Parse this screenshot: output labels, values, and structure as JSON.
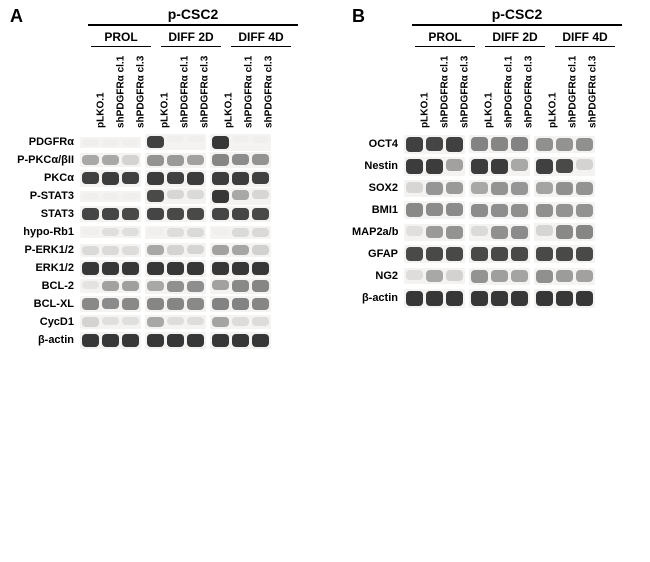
{
  "figure": {
    "background_color": "#ffffff",
    "band_color_dark": "#2c2c2c",
    "band_color_med": "#6a6a6a",
    "band_color_light": "#b4b4b4",
    "band_color_faint": "#dedede",
    "lane_bg": "#f4f3f1",
    "panelA": {
      "letter": "A",
      "cell_line": "p-CSC2",
      "conditions": [
        "PROL",
        "DIFF 2D",
        "DIFF 4D"
      ],
      "lanes": [
        "pLKO.1",
        "shPDGFRα cl.1",
        "shPDGFRα cl.3"
      ],
      "protein_label_width": 70,
      "lane_width": 20,
      "band_height": 12,
      "row_gap": 16,
      "proteins": [
        {
          "name": "PDGFRα",
          "bands": [
            0.2,
            0.08,
            0.1,
            0.9,
            0.05,
            0.05,
            0.95,
            0.06,
            0.08
          ]
        },
        {
          "name": "P-PKCα/βII",
          "bands": [
            0.55,
            0.55,
            0.5,
            0.7,
            0.65,
            0.6,
            0.8,
            0.75,
            0.7
          ]
        },
        {
          "name": "PKCα",
          "bands": [
            0.9,
            0.92,
            0.9,
            0.92,
            0.9,
            0.92,
            0.92,
            0.92,
            0.9
          ]
        },
        {
          "name": "P-STAT3",
          "bands": [
            0.15,
            0.12,
            0.12,
            0.85,
            0.45,
            0.4,
            0.95,
            0.55,
            0.45
          ]
        },
        {
          "name": "STAT3",
          "bands": [
            0.88,
            0.88,
            0.86,
            0.88,
            0.86,
            0.86,
            0.88,
            0.88,
            0.86
          ]
        },
        {
          "name": "hypo-Rb1",
          "bands": [
            0.1,
            0.3,
            0.32,
            0.12,
            0.35,
            0.4,
            0.14,
            0.4,
            0.42
          ]
        },
        {
          "name": "P-ERK1/2",
          "bands": [
            0.4,
            0.38,
            0.36,
            0.55,
            0.5,
            0.48,
            0.6,
            0.56,
            0.54
          ]
        },
        {
          "name": "ERK1/2",
          "bands": [
            0.95,
            0.95,
            0.95,
            0.95,
            0.95,
            0.95,
            0.95,
            0.95,
            0.95
          ]
        },
        {
          "name": "BCL-2",
          "bands": [
            0.25,
            0.6,
            0.62,
            0.55,
            0.72,
            0.74,
            0.6,
            0.78,
            0.8
          ]
        },
        {
          "name": "BCL-XL",
          "bands": [
            0.78,
            0.76,
            0.78,
            0.8,
            0.8,
            0.78,
            0.82,
            0.82,
            0.8
          ]
        },
        {
          "name": "CycD1",
          "bands": [
            0.5,
            0.3,
            0.32,
            0.55,
            0.34,
            0.34,
            0.58,
            0.36,
            0.36
          ]
        },
        {
          "name": "β-actin",
          "bands": [
            0.95,
            0.95,
            0.95,
            0.95,
            0.95,
            0.95,
            0.95,
            0.95,
            0.95
          ]
        }
      ]
    },
    "panelB": {
      "letter": "B",
      "cell_line": "p-CSC2",
      "conditions": [
        "PROL",
        "DIFF 2D",
        "DIFF 4D"
      ],
      "lanes": [
        "pLKO.1",
        "shPDGFRα cl.1",
        "shPDGFRα cl.3"
      ],
      "protein_label_width": 52,
      "lane_width": 20,
      "band_height": 14,
      "row_gap": 20,
      "proteins": [
        {
          "name": "OCT4",
          "bands": [
            0.9,
            0.88,
            0.9,
            0.82,
            0.8,
            0.82,
            0.72,
            0.7,
            0.72
          ]
        },
        {
          "name": "Nestin",
          "bands": [
            0.92,
            0.92,
            0.6,
            0.92,
            0.92,
            0.55,
            0.9,
            0.85,
            0.5
          ]
        },
        {
          "name": "SOX2",
          "bands": [
            0.45,
            0.68,
            0.65,
            0.55,
            0.7,
            0.68,
            0.58,
            0.72,
            0.7
          ]
        },
        {
          "name": "BMI1",
          "bands": [
            0.78,
            0.76,
            0.76,
            0.75,
            0.74,
            0.73,
            0.72,
            0.7,
            0.7
          ]
        },
        {
          "name": "MAP2a/b",
          "bands": [
            0.3,
            0.65,
            0.7,
            0.4,
            0.72,
            0.76,
            0.48,
            0.78,
            0.8
          ]
        },
        {
          "name": "GFAP",
          "bands": [
            0.85,
            0.86,
            0.86,
            0.86,
            0.86,
            0.86,
            0.86,
            0.86,
            0.86
          ]
        },
        {
          "name": "NG2",
          "bands": [
            0.35,
            0.55,
            0.52,
            0.7,
            0.62,
            0.58,
            0.72,
            0.64,
            0.6
          ]
        },
        {
          "name": "β-actin",
          "bands": [
            0.95,
            0.95,
            0.95,
            0.95,
            0.95,
            0.95,
            0.95,
            0.95,
            0.95
          ]
        }
      ]
    }
  }
}
